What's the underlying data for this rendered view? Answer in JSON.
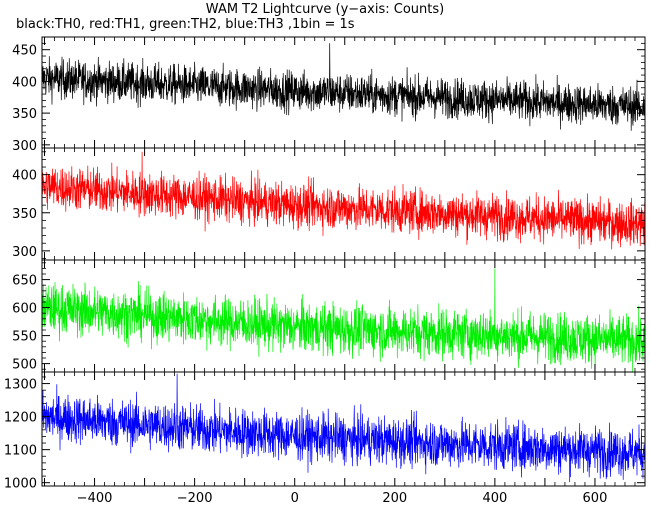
{
  "title": "WAM T2 Lightcurve (y−axis: Counts)",
  "subtitle": "black:TH0, red:TH1, green:TH2, blue:TH3 ,1bin = 1s",
  "chart_data": {
    "type": "line",
    "x_range": [
      -505,
      700
    ],
    "x_ticks": [
      -400,
      -200,
      0,
      200,
      400,
      600
    ],
    "x_tick_labels": [
      "−400",
      "−200",
      "0",
      "200",
      "400",
      "600"
    ],
    "bin_seconds": 1,
    "panels": [
      {
        "series": "TH0",
        "color": "#000000",
        "ylim": [
          295,
          470
        ],
        "yticks": [
          300,
          350,
          400,
          450
        ],
        "trend": {
          "x": [
            -505,
            0,
            700
          ],
          "y": [
            405,
            385,
            360
          ]
        },
        "noise_amplitude": 28,
        "spike": {
          "x": 70,
          "y": 460
        }
      },
      {
        "series": "TH1",
        "color": "#ff0000",
        "ylim": [
          288,
          435
        ],
        "yticks": [
          300,
          350,
          400
        ],
        "trend": {
          "x": [
            -505,
            0,
            700
          ],
          "y": [
            385,
            360,
            335
          ]
        },
        "noise_amplitude": 26,
        "spike": {
          "x": -305,
          "y": 430
        }
      },
      {
        "series": "TH2",
        "color": "#00ee00",
        "ylim": [
          485,
          685
        ],
        "yticks": [
          500,
          550,
          600,
          650
        ],
        "trend": {
          "x": [
            -505,
            0,
            700
          ],
          "y": [
            600,
            565,
            540
          ]
        },
        "noise_amplitude": 40,
        "spike": {
          "x": 400,
          "y": 670
        }
      },
      {
        "series": "TH3",
        "color": "#0000ff",
        "ylim": [
          990,
          1335
        ],
        "yticks": [
          1000,
          1100,
          1200,
          1300
        ],
        "trend": {
          "x": [
            -505,
            0,
            700
          ],
          "y": [
            1200,
            1140,
            1090
          ]
        },
        "noise_amplitude": 65,
        "spike": {
          "x": -235,
          "y": 1330
        }
      }
    ]
  }
}
